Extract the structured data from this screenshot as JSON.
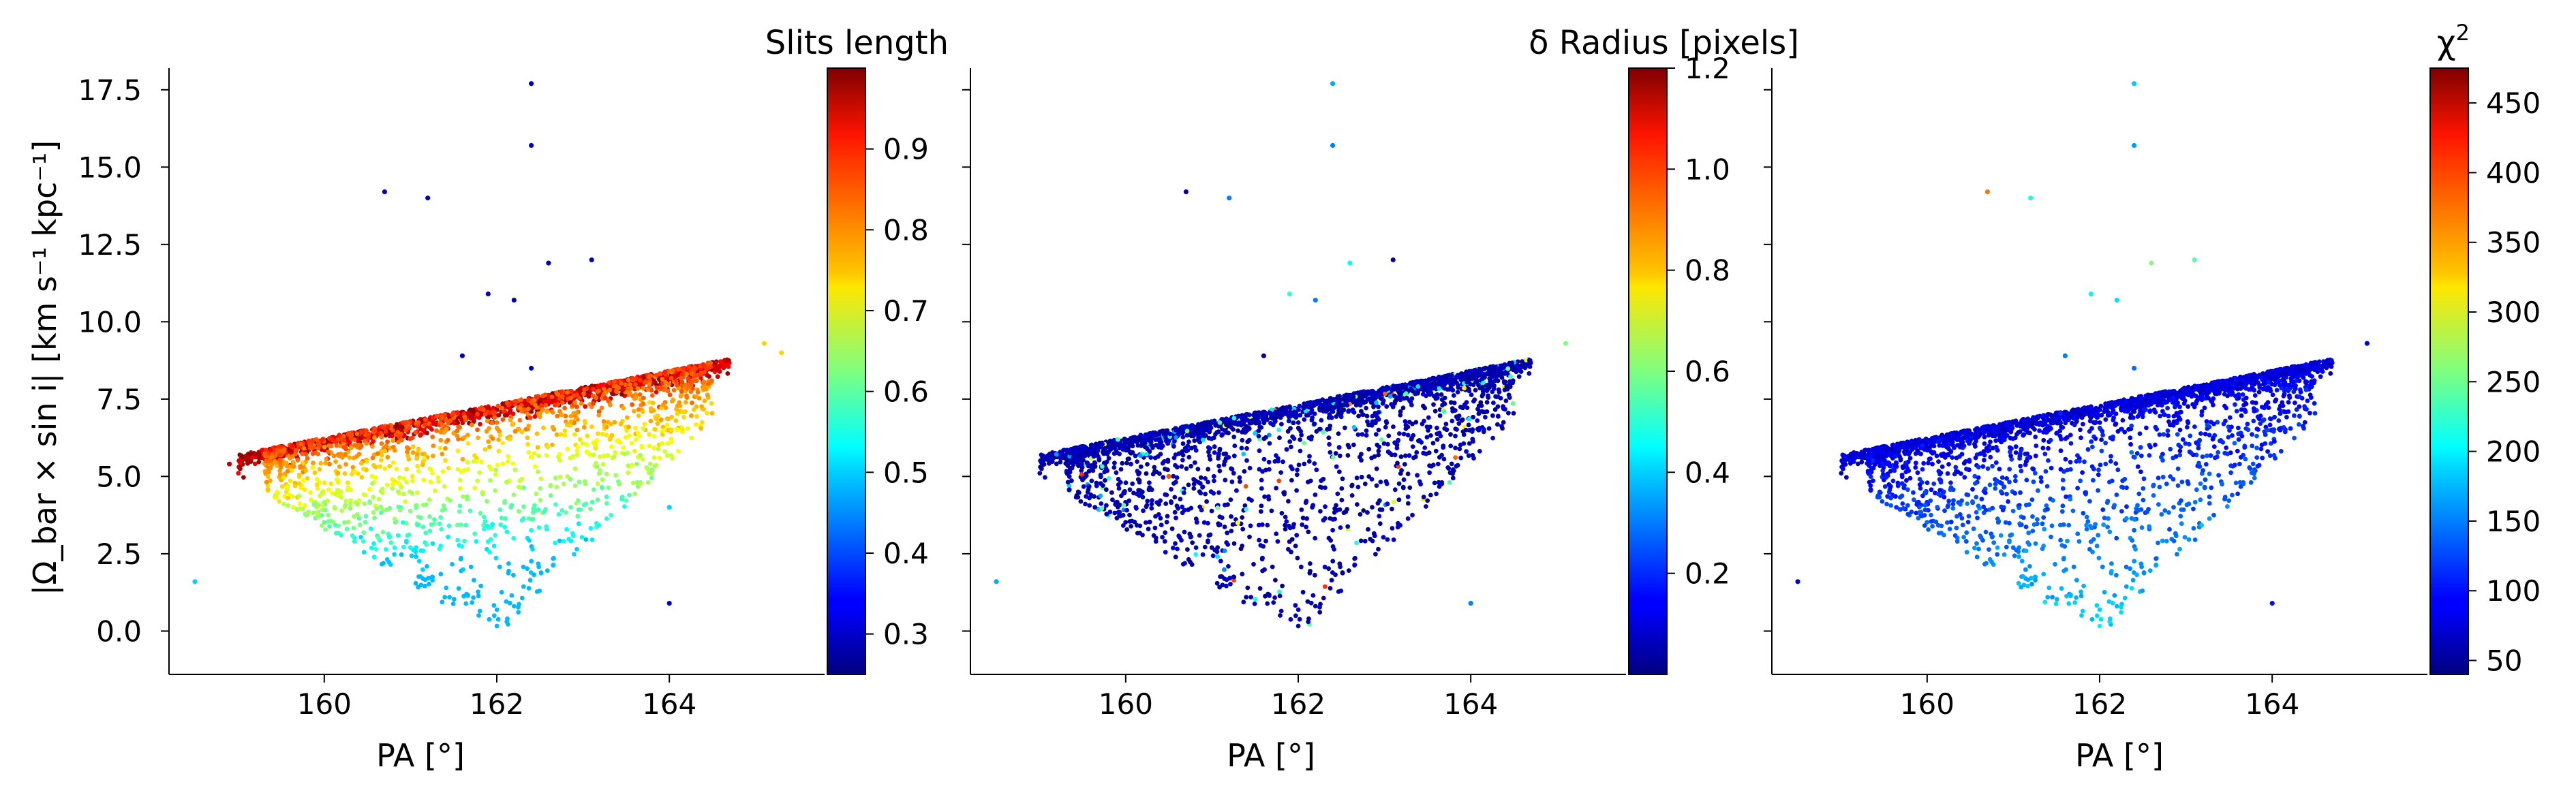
{
  "figure": {
    "type": "multi-panel-scatter",
    "shared_xlabel": "PA [°]",
    "shared_ylabel": "|Ω_bar × sin i|   [km s⁻¹ kpc⁻¹]",
    "xlim": [
      158.2,
      165.8
    ],
    "ylim": [
      -1.4,
      18.2
    ],
    "xticks": [
      "160",
      "162",
      "164"
    ],
    "yticks": [
      "0.0",
      "2.5",
      "5.0",
      "7.5",
      "10.0",
      "12.5",
      "15.0",
      "17.5"
    ],
    "colormap": "jet",
    "grid": false
  },
  "chart_data": [
    {
      "type": "scatter",
      "panel": 1,
      "xlabel": "PA [°]",
      "ylabel": "|Ω_bar × sin i|   [km s⁻¹ kpc⁻¹]",
      "xlim": [
        158.2,
        165.8
      ],
      "ylim": [
        -1.4,
        18.2
      ],
      "colorbar": {
        "label": "Slits length",
        "range": [
          0.25,
          1.0
        ],
        "ticks": [
          "0.3",
          "0.4",
          "0.5",
          "0.6",
          "0.7",
          "0.8",
          "0.9"
        ],
        "colormap": "jet"
      },
      "description_of_distribution": "dense linear upper envelope PA 158.9–165.3, |Ω sin i| ≈ 5.3→9.3, colored red (≈0.95); points below envelope colored green→cyan decreasing with depth",
      "points": [
        {
          "x": 158.5,
          "y": 1.6,
          "c": 0.5
        },
        {
          "x": 158.9,
          "y": 5.4,
          "c": 0.95
        },
        {
          "x": 160.7,
          "y": 14.2,
          "c": 0.3
        },
        {
          "x": 161.2,
          "y": 14.0,
          "c": 0.3
        },
        {
          "x": 162.4,
          "y": 17.7,
          "c": 0.3
        },
        {
          "x": 162.4,
          "y": 15.7,
          "c": 0.3
        },
        {
          "x": 162.6,
          "y": 11.9,
          "c": 0.3
        },
        {
          "x": 163.1,
          "y": 12.0,
          "c": 0.3
        },
        {
          "x": 161.9,
          "y": 10.9,
          "c": 0.3
        },
        {
          "x": 162.2,
          "y": 10.7,
          "c": 0.3
        },
        {
          "x": 161.6,
          "y": 8.9,
          "c": 0.3
        },
        {
          "x": 162.4,
          "y": 8.5,
          "c": 0.3
        },
        {
          "x": 165.1,
          "y": 9.3,
          "c": 0.75
        },
        {
          "x": 165.3,
          "y": 9.0,
          "c": 0.75
        },
        {
          "x": 164.0,
          "y": 0.9,
          "c": 0.3
        },
        {
          "x": 164.0,
          "y": 4.0,
          "c": 0.5
        }
      ]
    },
    {
      "type": "scatter",
      "panel": 2,
      "xlabel": "PA [°]",
      "xlim": [
        158.2,
        165.8
      ],
      "ylim": [
        -1.4,
        18.2
      ],
      "colorbar": {
        "label": "δ Radius [pixels]",
        "range": [
          0.0,
          1.2
        ],
        "ticks": [
          "0.2",
          "0.4",
          "0.6",
          "0.8",
          "1.0",
          "1.2"
        ],
        "colormap": "jet"
      },
      "description_of_distribution": "same point cloud as panel 1, almost all points dark blue (δ Radius ≈ 0.05), a few cyan/yellow/orange outliers",
      "points": [
        {
          "x": 158.5,
          "y": 1.6,
          "c": 0.35
        },
        {
          "x": 160.7,
          "y": 14.2,
          "c": 0.05
        },
        {
          "x": 161.2,
          "y": 14.0,
          "c": 0.3
        },
        {
          "x": 162.4,
          "y": 17.7,
          "c": 0.35
        },
        {
          "x": 162.4,
          "y": 15.7,
          "c": 0.3
        },
        {
          "x": 162.6,
          "y": 11.9,
          "c": 0.45
        },
        {
          "x": 163.1,
          "y": 12.0,
          "c": 0.05
        },
        {
          "x": 161.9,
          "y": 10.9,
          "c": 0.5
        },
        {
          "x": 162.2,
          "y": 10.7,
          "c": 0.3
        },
        {
          "x": 161.6,
          "y": 8.9,
          "c": 0.05
        },
        {
          "x": 165.1,
          "y": 9.3,
          "c": 0.6
        },
        {
          "x": 164.0,
          "y": 0.9,
          "c": 0.3
        },
        {
          "x": 160.5,
          "y": 5.0,
          "c": 0.95
        },
        {
          "x": 161.3,
          "y": 3.5,
          "c": 0.75
        }
      ]
    },
    {
      "type": "scatter",
      "panel": 3,
      "xlabel": "PA [°]",
      "xlim": [
        158.2,
        165.8
      ],
      "ylim": [
        -1.4,
        18.2
      ],
      "colorbar": {
        "label": "χ²",
        "range": [
          40,
          475
        ],
        "ticks": [
          "50",
          "100",
          "150",
          "200",
          "250",
          "300",
          "350",
          "400",
          "450"
        ],
        "colormap": "jet"
      },
      "description_of_distribution": "same point cloud, envelope and upper points deep blue (χ² ≈ 70–110), lower scattered points medium blue (≈130–160)",
      "points": [
        {
          "x": 158.5,
          "y": 1.6,
          "c": 80
        },
        {
          "x": 160.7,
          "y": 14.2,
          "c": 370
        },
        {
          "x": 161.2,
          "y": 14.0,
          "c": 210
        },
        {
          "x": 162.4,
          "y": 17.7,
          "c": 180
        },
        {
          "x": 162.4,
          "y": 15.7,
          "c": 160
        },
        {
          "x": 162.6,
          "y": 11.9,
          "c": 260
        },
        {
          "x": 163.1,
          "y": 12.0,
          "c": 240
        },
        {
          "x": 161.9,
          "y": 10.9,
          "c": 200
        },
        {
          "x": 162.2,
          "y": 10.7,
          "c": 190
        },
        {
          "x": 161.6,
          "y": 8.9,
          "c": 150
        },
        {
          "x": 162.4,
          "y": 8.5,
          "c": 140
        },
        {
          "x": 165.1,
          "y": 9.3,
          "c": 80
        },
        {
          "x": 164.0,
          "y": 0.9,
          "c": 100
        }
      ]
    }
  ]
}
